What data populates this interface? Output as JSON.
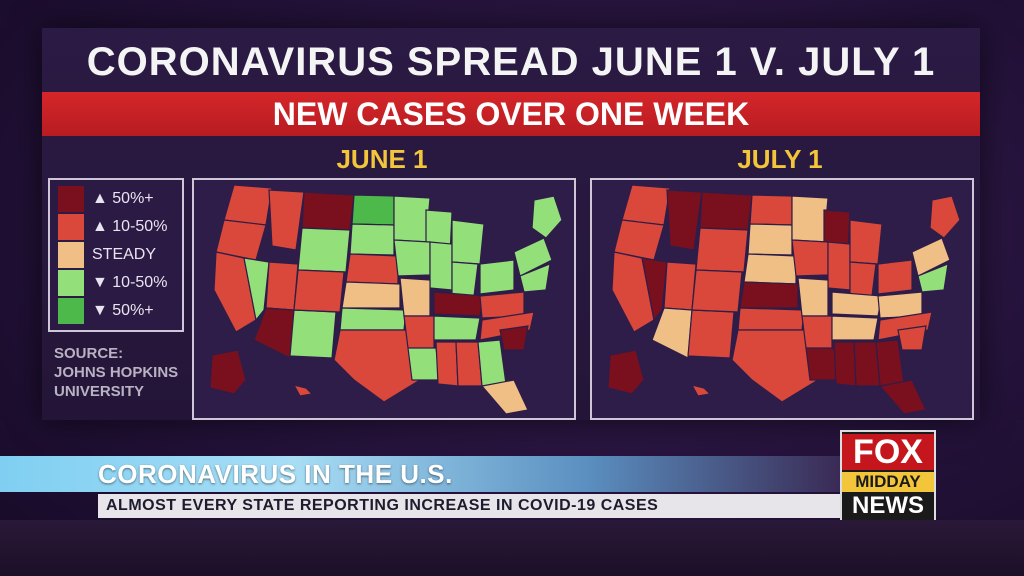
{
  "title": "CORONAVIRUS SPREAD JUNE 1 V. JULY 1",
  "subtitle": "NEW CASES OVER ONE WEEK",
  "maps": [
    {
      "label": "JUNE 1"
    },
    {
      "label": "JULY 1"
    }
  ],
  "legend": {
    "items": [
      {
        "label": "▲ 50%+",
        "color": "#7a0f1e"
      },
      {
        "label": "▲ 10-50%",
        "color": "#d9483a"
      },
      {
        "label": "STEADY",
        "color": "#efbf86"
      },
      {
        "label": "▼ 10-50%",
        "color": "#93e07a"
      },
      {
        "label": "▼ 50%+",
        "color": "#4cb94a"
      }
    ]
  },
  "source": {
    "line1": "SOURCE:",
    "line2": "JOHNS HOPKINS",
    "line3": "UNIVERSITY"
  },
  "ticker": {
    "headline": "CORONAVIRUS IN THE U.S.",
    "subline": "ALMOST EVERY STATE REPORTING INCREASE IN COVID-19 CASES"
  },
  "logo": {
    "fox": "FOX",
    "midday": "MIDDAY",
    "news": "NEWS"
  },
  "colors": {
    "red_bar": "#c8202a",
    "map_label": "#f2c53a",
    "up50": "#7a0f1e",
    "up10": "#d9483a",
    "steady": "#efbf86",
    "down10": "#93e07a",
    "down50": "#4cb94a"
  }
}
